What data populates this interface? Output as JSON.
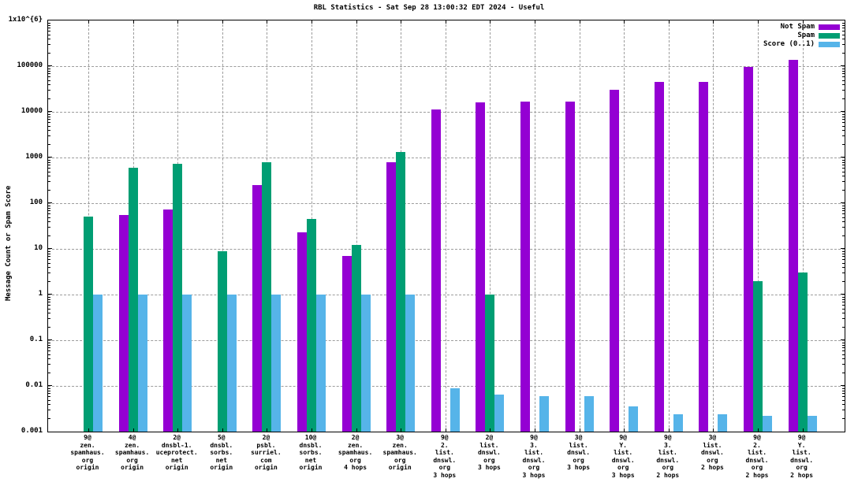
{
  "chart_data": {
    "type": "bar",
    "scale": "log-y",
    "title": "RBL Statistics - Sat Sep 28 13:00:32 EDT 2024 - Useful",
    "ylabel": "Message Count or Spam Score",
    "ylim": [
      0.001,
      1000000
    ],
    "grid": true,
    "legend_position": "top-right-inside",
    "yticks": [
      {
        "label": "1x10^{6}",
        "exp": 6
      },
      {
        "label": "100000",
        "exp": 5
      },
      {
        "label": "10000",
        "exp": 4
      },
      {
        "label": "1000",
        "exp": 3
      },
      {
        "label": "100",
        "exp": 2
      },
      {
        "label": "10",
        "exp": 1
      },
      {
        "label": "1",
        "exp": 0
      },
      {
        "label": "0.1",
        "exp": -1
      },
      {
        "label": "0.01",
        "exp": -2
      },
      {
        "label": "0.001",
        "exp": -3
      }
    ],
    "categories": [
      [
        "9@",
        "zen.",
        "spamhaus.",
        "org",
        "origin"
      ],
      [
        "4@",
        "zen.",
        "spamhaus.",
        "org",
        "origin"
      ],
      [
        "2@",
        "dnsbl-1.",
        "uceprotect.",
        "net",
        "origin"
      ],
      [
        "5@",
        "dnsbl.",
        "sorbs.",
        "net",
        "origin"
      ],
      [
        "2@",
        "psbl.",
        "surriel.",
        "com",
        "origin"
      ],
      [
        "10@",
        "dnsbl.",
        "sorbs.",
        "net",
        "origin"
      ],
      [
        "2@",
        "zen.",
        "spamhaus.",
        "org",
        "4 hops"
      ],
      [
        "3@",
        "zen.",
        "spamhaus.",
        "org",
        "origin"
      ],
      [
        "9@",
        "2.",
        "list.",
        "dnswl.",
        "org",
        "3 hops"
      ],
      [
        "2@",
        "list.",
        "dnswl.",
        "org",
        "3 hops"
      ],
      [
        "9@",
        "3.",
        "list.",
        "dnswl.",
        "org",
        "3 hops"
      ],
      [
        "3@",
        "list.",
        "dnswl.",
        "org",
        "3 hops"
      ],
      [
        "9@",
        "Y.",
        "list.",
        "dnswl.",
        "org",
        "3 hops"
      ],
      [
        "9@",
        "3.",
        "list.",
        "dnswl.",
        "org",
        "2 hops"
      ],
      [
        "3@",
        "list.",
        "dnswl.",
        "org",
        "2 hops"
      ],
      [
        "9@",
        "2.",
        "list.",
        "dnswl.",
        "org",
        "2 hops"
      ],
      [
        "9@",
        "Y.",
        "list.",
        "dnswl.",
        "org",
        "2 hops"
      ]
    ],
    "series": [
      {
        "name": "Not Spam",
        "color": "#9400d3",
        "values": [
          0,
          55,
          72,
          0,
          250,
          23,
          7,
          800,
          11500,
          16000,
          17000,
          17000,
          30000,
          45000,
          45000,
          95000,
          140000
        ]
      },
      {
        "name": "Spam",
        "color": "#009e73",
        "values": [
          52,
          600,
          730,
          9,
          780,
          45,
          12,
          1300,
          0,
          1,
          0,
          0,
          0,
          0,
          0,
          2,
          3
        ]
      },
      {
        "name": "Score (0..1)",
        "color": "#56b4e9",
        "values": [
          1,
          1,
          1,
          1,
          1,
          1,
          1,
          1,
          0.009,
          0.0065,
          0.006,
          0.006,
          0.0036,
          0.0024,
          0.0024,
          0.0022,
          0.0022
        ]
      }
    ]
  }
}
